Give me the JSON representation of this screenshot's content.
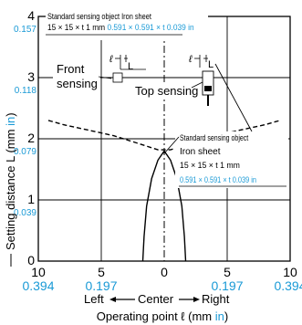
{
  "chart_data": {
    "type": "line",
    "xlabel": "Operating point ℓ (mm",
    "xlabel_unit": "in",
    "xlabel_close": ")",
    "ylabel": "Setting distance L (mm",
    "ylabel_unit": "in",
    "ylabel_close": ")",
    "xlim": [
      -10,
      10
    ],
    "ylim": [
      0,
      4
    ],
    "grid": true,
    "x_ticks": [
      {
        "value": -10,
        "mm": "10",
        "in": "0.394"
      },
      {
        "value": -5,
        "mm": "5",
        "in": "0.197"
      },
      {
        "value": 0,
        "mm": "0",
        "in": ""
      },
      {
        "value": 5,
        "mm": "5",
        "in": "0.197"
      },
      {
        "value": 10,
        "mm": "10",
        "in": "0.394"
      }
    ],
    "y_ticks": [
      {
        "value": 0,
        "mm": "0",
        "in": ""
      },
      {
        "value": 1,
        "mm": "1",
        "in": "0.039"
      },
      {
        "value": 2,
        "mm": "2",
        "in": "0.079"
      },
      {
        "value": 3,
        "mm": "3",
        "in": "0.118"
      },
      {
        "value": 4,
        "mm": "4",
        "in": "0.157"
      }
    ],
    "direction_labels": {
      "left": "Left",
      "center": "Center",
      "right": "Right"
    },
    "series": [
      {
        "name": "Front sensing",
        "style": "dashed",
        "x": [
          -9.2,
          -8,
          -6,
          -4,
          -2,
          -0.5,
          0.5,
          2,
          4,
          6,
          8,
          9.2
        ],
        "y": [
          2.3,
          2.23,
          2.14,
          2.05,
          1.92,
          1.82,
          1.82,
          1.92,
          2.05,
          2.14,
          2.23,
          2.3
        ]
      },
      {
        "name": "Top sensing",
        "style": "solid",
        "x": [
          -1.7,
          -1.6,
          -1.4,
          -1.0,
          -0.5,
          0,
          0.5,
          1.0,
          1.4,
          1.6,
          1.7
        ],
        "y": [
          0,
          0.4,
          0.9,
          1.35,
          1.65,
          1.8,
          1.65,
          1.35,
          0.9,
          0.4,
          0
        ]
      }
    ],
    "annotations": {
      "standard_object_top": {
        "line1": "Standard sensing object Iron sheet",
        "line2_mm": "15 × 15 × t 1 mm",
        "line2_in": "0.591 × 0.591 × t 0.039 in"
      },
      "standard_object_right": {
        "line1": "Standard sensing object",
        "line2": "Iron sheet",
        "line3": "15 × 15 × t 1 mm",
        "line4": "0.591 × 0.591 × t 0.039 in"
      },
      "front_label_1": "Front",
      "front_label_2": "sensing",
      "top_label": "Top sensing",
      "ell_symbol": "ℓ",
      "L_symbol": "L"
    },
    "colors": {
      "black": "#000000",
      "blue": "#1a9ad6"
    }
  }
}
